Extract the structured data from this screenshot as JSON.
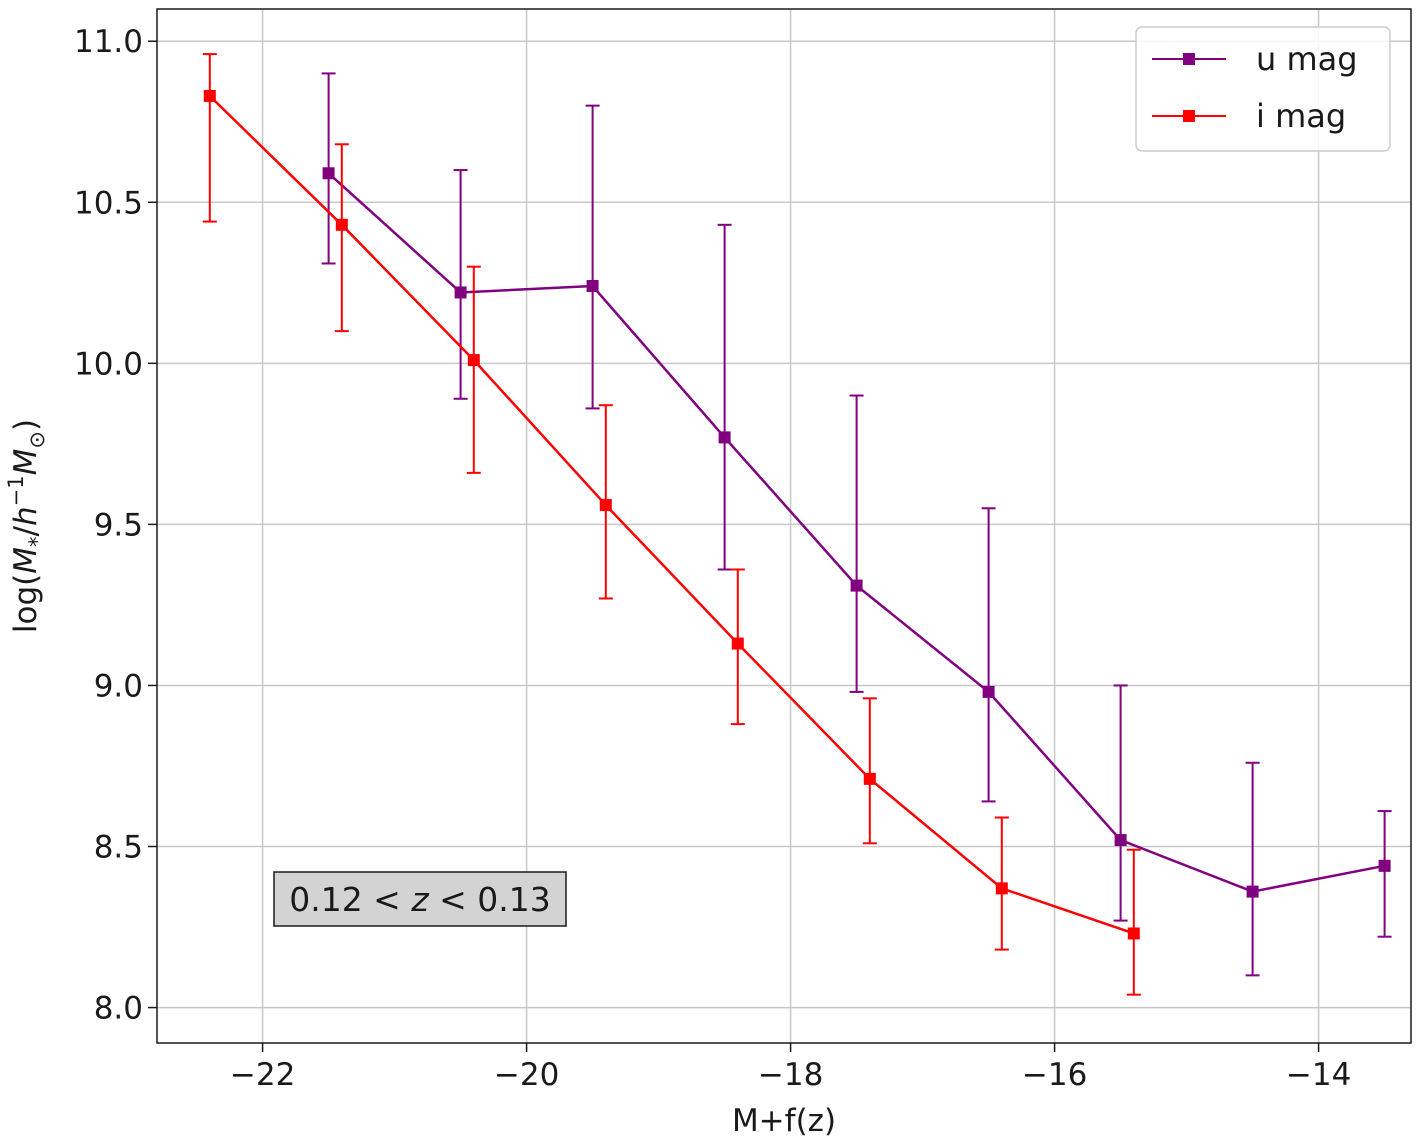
{
  "chart_data": {
    "type": "line",
    "title": "",
    "xlabel": "M+f(z)",
    "ylabel": "log(M*/h⁻¹M☉)",
    "ylabel_parts": {
      "a": "log(",
      "m": "M",
      "sub": "*",
      "b": "/",
      "h": "h",
      "sup": "−1",
      "m2": "M",
      "sun": "⊙",
      "close": ")"
    },
    "xlim": [
      -22.8,
      -13.3
    ],
    "ylim": [
      7.89,
      11.1
    ],
    "xticks": [
      -22,
      -20,
      -18,
      -16,
      -14
    ],
    "xtick_labels": [
      "−22",
      "−20",
      "−18",
      "−16",
      "−14"
    ],
    "yticks": [
      8.0,
      8.5,
      9.0,
      9.5,
      10.0,
      10.5,
      11.0
    ],
    "ytick_labels": [
      "8.0",
      "8.5",
      "9.0",
      "9.5",
      "10.0",
      "10.5",
      "11.0"
    ],
    "grid": true,
    "legend_position": "top-right",
    "annotation": {
      "text": "0.12 < z < 0.13",
      "parts": [
        "0.12 < ",
        "z",
        " < 0.13"
      ]
    },
    "series": [
      {
        "name": "u mag",
        "color": "#800080",
        "x": [
          -21.5,
          -20.5,
          -19.5,
          -18.5,
          -17.5,
          -16.5,
          -15.5,
          -14.5,
          -13.5
        ],
        "y": [
          10.59,
          10.22,
          10.24,
          9.77,
          9.31,
          8.98,
          8.52,
          8.36,
          8.44
        ],
        "err_low": [
          10.31,
          9.89,
          9.86,
          9.36,
          8.98,
          8.64,
          8.27,
          8.1,
          8.22
        ],
        "err_high": [
          10.9,
          10.6,
          10.8,
          10.43,
          9.9,
          9.55,
          9.0,
          8.76,
          8.61
        ]
      },
      {
        "name": "i mag",
        "color": "#ff0000",
        "x": [
          -22.4,
          -21.4,
          -20.4,
          -19.4,
          -18.4,
          -17.4,
          -16.4,
          -15.4
        ],
        "y": [
          10.83,
          10.43,
          10.01,
          9.56,
          9.13,
          8.71,
          8.37,
          8.23
        ],
        "err_low": [
          10.44,
          10.1,
          9.66,
          9.27,
          8.88,
          8.51,
          8.18,
          8.04
        ],
        "err_high": [
          10.96,
          10.68,
          10.3,
          9.87,
          9.36,
          8.96,
          8.59,
          8.49
        ]
      }
    ]
  }
}
